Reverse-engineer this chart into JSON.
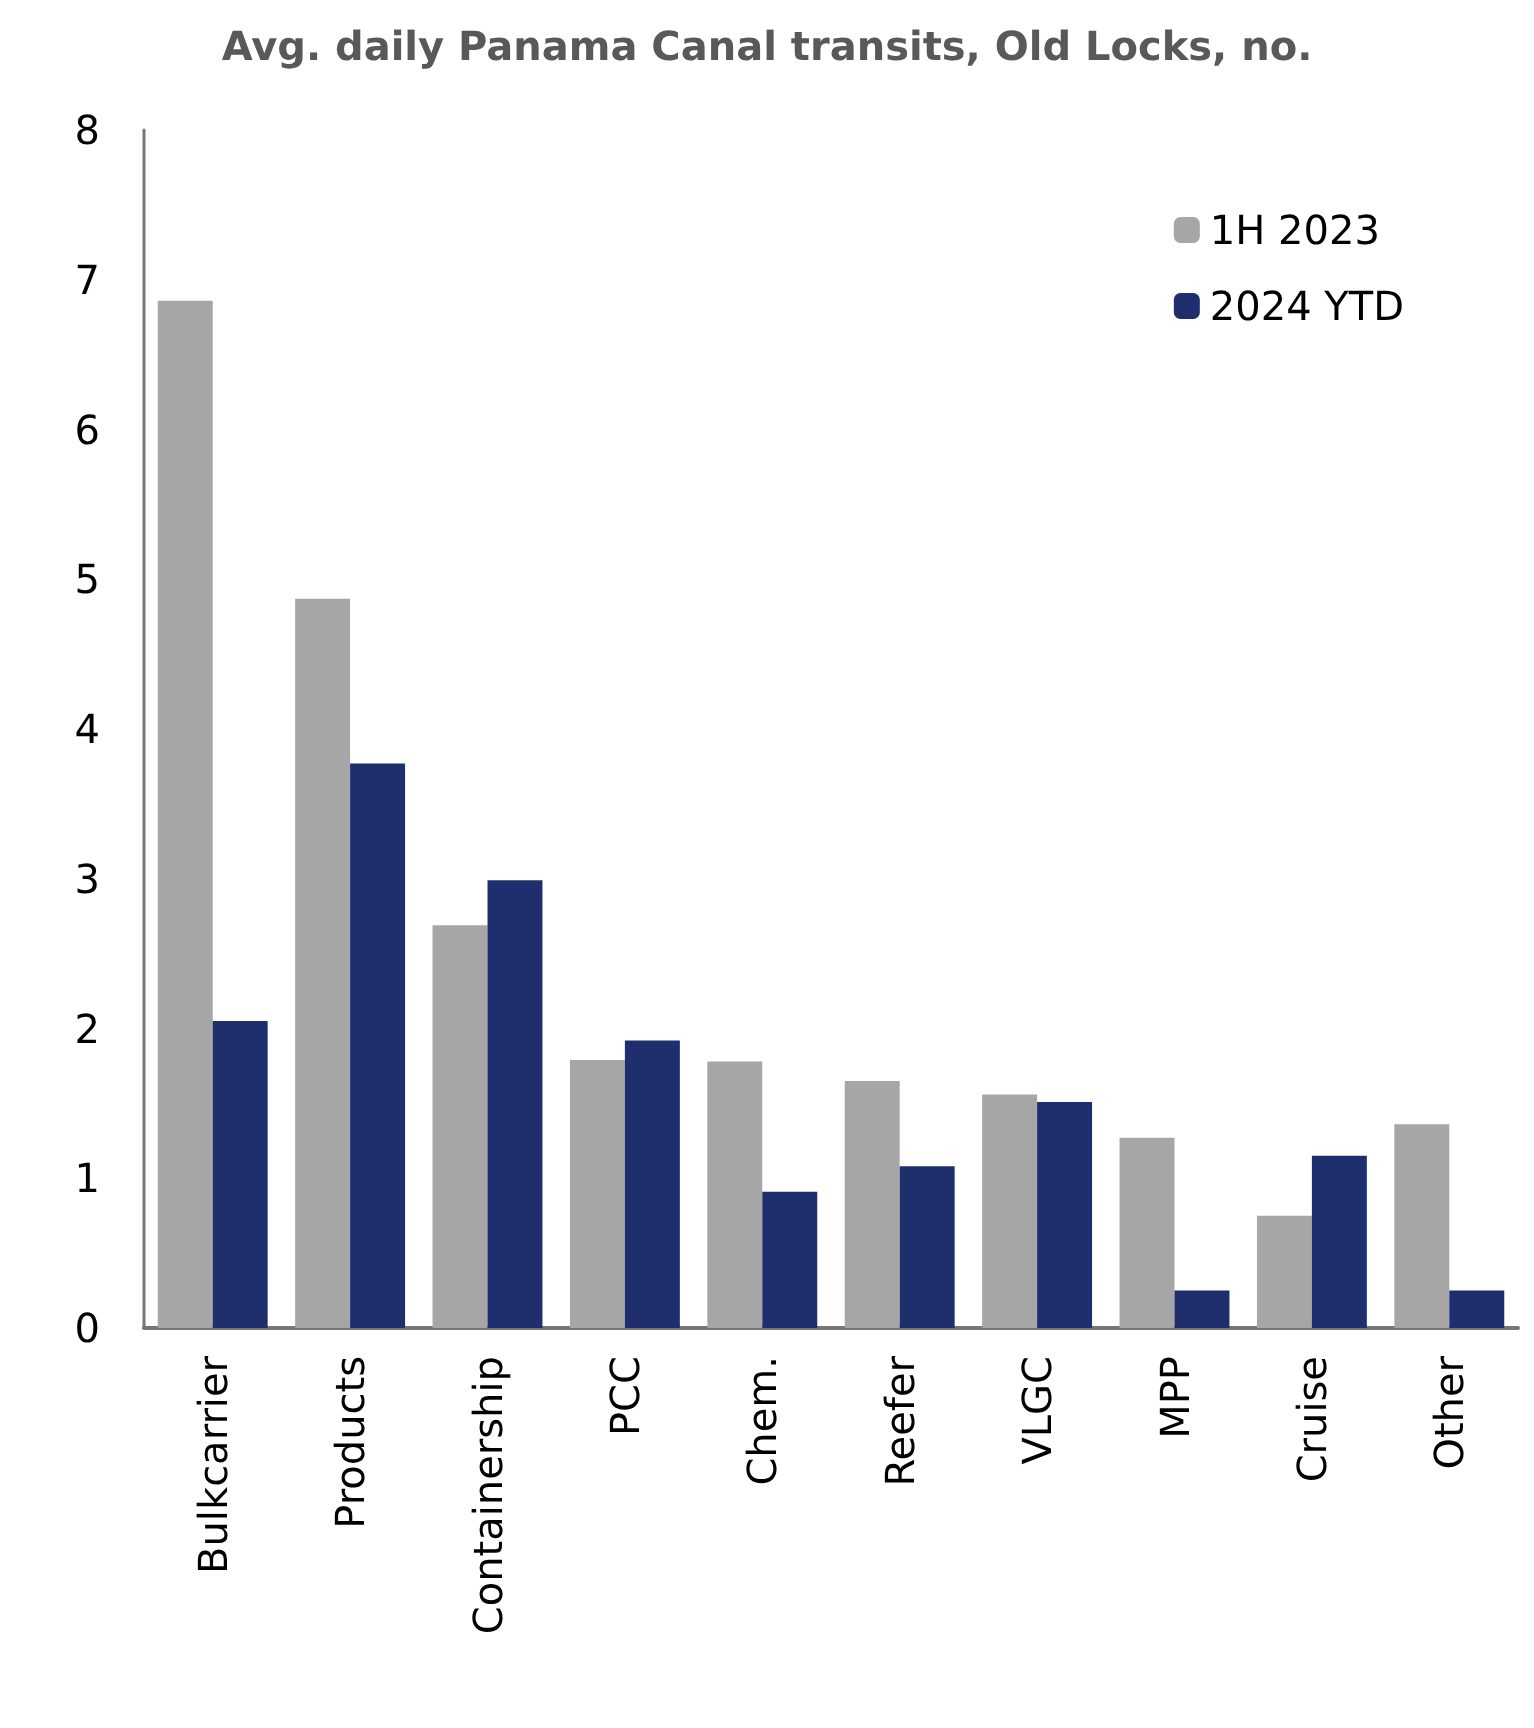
{
  "chart_data": {
    "type": "bar",
    "title": "Avg. daily Panama Canal transits, Old Locks, no.",
    "categories": [
      "Bulkcarrier",
      "Products",
      "Containership",
      "PCC",
      "Chem.",
      "Reefer",
      "VLGC",
      "MPP",
      "Cruise",
      "Other"
    ],
    "series": [
      {
        "name": "1H 2023",
        "color": "#a6a6a6",
        "values": [
          6.86,
          4.87,
          2.69,
          1.79,
          1.78,
          1.65,
          1.56,
          1.27,
          0.75,
          1.36
        ]
      },
      {
        "name": "2024 YTD",
        "color": "#1f2f6e",
        "values": [
          2.05,
          3.77,
          2.99,
          1.92,
          0.91,
          1.08,
          1.51,
          0.25,
          1.15,
          0.25
        ]
      }
    ],
    "ylim": [
      0,
      8
    ],
    "yticks": [
      0,
      1,
      2,
      3,
      4,
      5,
      6,
      7,
      8
    ],
    "grid": false,
    "legend": "top right"
  }
}
